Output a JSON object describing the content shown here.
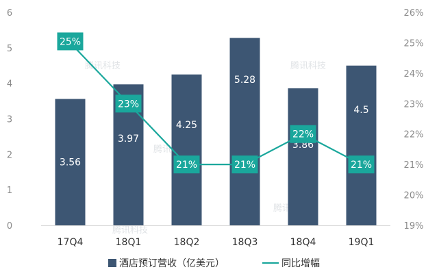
{
  "chart_data": {
    "type": "bar",
    "categories": [
      "17Q4",
      "18Q1",
      "18Q2",
      "18Q3",
      "18Q4",
      "19Q1"
    ],
    "series": [
      {
        "name": "酒店预订营收（亿美元）",
        "type": "bar",
        "axis": "left",
        "values": [
          3.56,
          3.97,
          4.25,
          5.28,
          3.86,
          4.5
        ],
        "labels": [
          "3.56",
          "3.97",
          "4.25",
          "5.28",
          "3.86",
          "4.5"
        ]
      },
      {
        "name": "同比增幅",
        "type": "line",
        "axis": "right",
        "values": [
          25,
          23,
          21,
          21,
          22,
          21
        ],
        "labels": [
          "25%",
          "23%",
          "21%",
          "21%",
          "22%",
          "21%"
        ]
      }
    ],
    "y_left": {
      "min": 0,
      "max": 6,
      "ticks": [
        "0",
        "1",
        "2",
        "3",
        "4",
        "5",
        "6"
      ]
    },
    "y_right": {
      "min": 19,
      "max": 26,
      "ticks": [
        "19%",
        "20%",
        "21%",
        "22%",
        "23%",
        "24%",
        "25%",
        "26%"
      ]
    },
    "legend_position": "bottom",
    "grid": false,
    "colors": {
      "bar": "#3d5673",
      "line": "#1aa79c"
    },
    "watermark": "腾讯科技"
  }
}
